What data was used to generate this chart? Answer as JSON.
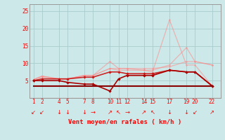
{
  "bg_color": "#cce8e8",
  "grid_color": "#aacccc",
  "x_ticks": [
    1,
    2,
    4,
    5,
    7,
    8,
    10,
    11,
    12,
    14,
    15,
    17,
    19,
    20,
    22
  ],
  "xlabel": "Vent moyen/en rafales ( km/h )",
  "ylim": [
    0,
    27
  ],
  "xlim": [
    0.5,
    23.0
  ],
  "yticks": [
    0,
    5,
    10,
    15,
    20,
    25
  ],
  "lines": [
    {
      "x": [
        1,
        2,
        4,
        5,
        7,
        8,
        10,
        11,
        12,
        14,
        15,
        17,
        19,
        20,
        22
      ],
      "y": [
        5.3,
        6.3,
        5.5,
        5.5,
        6.5,
        6.5,
        10.5,
        8.5,
        8.5,
        8.5,
        8.5,
        9.0,
        10.5,
        10.5,
        9.5
      ],
      "color": "#ff8888",
      "alpha": 0.55,
      "lw": 0.9,
      "marker": "o",
      "ms": 1.8
    },
    {
      "x": [
        1,
        2,
        4,
        5,
        7,
        8,
        10,
        11,
        12,
        14,
        15,
        17,
        19,
        20,
        22
      ],
      "y": [
        5.3,
        6.0,
        5.5,
        5.5,
        6.5,
        6.5,
        8.5,
        8.0,
        8.0,
        8.0,
        7.5,
        22.5,
        9.5,
        9.5,
        3.5
      ],
      "color": "#ff8888",
      "alpha": 0.55,
      "lw": 0.9,
      "marker": "o",
      "ms": 1.8
    },
    {
      "x": [
        1,
        2,
        4,
        5,
        7,
        8,
        10,
        11,
        12,
        14,
        15,
        17,
        19,
        20,
        22
      ],
      "y": [
        5.3,
        6.3,
        5.5,
        5.5,
        6.5,
        6.5,
        8.5,
        8.5,
        8.5,
        8.0,
        8.0,
        9.5,
        14.5,
        10.5,
        9.5
      ],
      "color": "#ff8888",
      "alpha": 0.55,
      "lw": 0.9,
      "marker": "o",
      "ms": 1.8
    },
    {
      "x": [
        1,
        2,
        4,
        5,
        7,
        8,
        10,
        11,
        12,
        14,
        15,
        17,
        19,
        20,
        22
      ],
      "y": [
        5.0,
        5.5,
        5.5,
        5.5,
        6.0,
        6.0,
        7.5,
        7.5,
        7.0,
        7.0,
        7.0,
        8.0,
        7.5,
        7.5,
        3.5
      ],
      "color": "#cc1111",
      "alpha": 0.9,
      "lw": 1.2,
      "marker": "D",
      "ms": 2.2
    },
    {
      "x": [
        1,
        2,
        4,
        5,
        7,
        8,
        10,
        11,
        12,
        14,
        15,
        17,
        19,
        20,
        22
      ],
      "y": [
        5.0,
        5.0,
        5.0,
        4.5,
        4.0,
        4.0,
        2.0,
        5.5,
        6.5,
        6.5,
        6.5,
        8.0,
        7.5,
        7.5,
        3.5
      ],
      "color": "#aa0000",
      "alpha": 1.0,
      "lw": 1.2,
      "marker": "D",
      "ms": 2.2
    },
    {
      "x": [
        1,
        2,
        4,
        5,
        7,
        8,
        10,
        11,
        12,
        14,
        15,
        17,
        19,
        20,
        22
      ],
      "y": [
        3.5,
        3.5,
        3.5,
        3.5,
        3.5,
        3.5,
        3.5,
        3.5,
        3.5,
        3.5,
        3.5,
        3.5,
        3.5,
        3.5,
        3.5
      ],
      "color": "#880000",
      "alpha": 1.0,
      "lw": 1.5,
      "marker": null,
      "ms": 0
    }
  ],
  "arrow_chars": [
    "↙",
    "↙",
    "↓",
    "↓",
    "↓",
    "→",
    "↗",
    "↖",
    "→",
    "↗",
    "↖",
    "↓",
    "↓",
    "↙",
    "↗"
  ]
}
